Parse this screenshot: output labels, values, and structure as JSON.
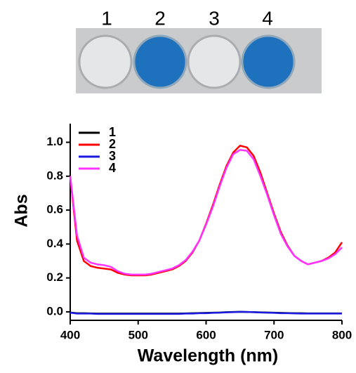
{
  "photo": {
    "labels": [
      "1",
      "2",
      "3",
      "4"
    ]
  },
  "chart_data": {
    "type": "line",
    "xlabel": "Wavelength (nm)",
    "ylabel": "Abs",
    "x": [
      400,
      410,
      420,
      430,
      440,
      450,
      460,
      470,
      480,
      490,
      500,
      510,
      520,
      530,
      540,
      550,
      560,
      570,
      580,
      590,
      600,
      610,
      620,
      630,
      640,
      650,
      660,
      670,
      680,
      690,
      700,
      710,
      720,
      730,
      740,
      750,
      760,
      770,
      780,
      790,
      800
    ],
    "series": [
      {
        "name": "1",
        "color": "#000000",
        "values": [
          -0.004,
          -0.008,
          -0.008,
          -0.009,
          -0.01,
          -0.01,
          -0.01,
          -0.01,
          -0.01,
          -0.01,
          -0.01,
          -0.01,
          -0.01,
          -0.01,
          -0.01,
          -0.01,
          -0.01,
          -0.009,
          -0.008,
          -0.007,
          -0.006,
          -0.005,
          -0.004,
          -0.002,
          -0.001,
          0,
          -0.001,
          -0.002,
          -0.003,
          -0.004,
          -0.005,
          -0.006,
          -0.007,
          -0.008,
          -0.008,
          -0.009,
          -0.009,
          -0.009,
          -0.009,
          -0.009,
          -0.009
        ]
      },
      {
        "name": "2",
        "color": "#ff0000",
        "values": [
          0.8,
          0.42,
          0.3,
          0.27,
          0.26,
          0.255,
          0.25,
          0.23,
          0.22,
          0.215,
          0.215,
          0.215,
          0.22,
          0.23,
          0.24,
          0.25,
          0.27,
          0.3,
          0.35,
          0.42,
          0.52,
          0.63,
          0.75,
          0.86,
          0.94,
          0.98,
          0.97,
          0.92,
          0.82,
          0.7,
          0.58,
          0.47,
          0.39,
          0.33,
          0.3,
          0.28,
          0.29,
          0.3,
          0.32,
          0.35,
          0.41
        ]
      },
      {
        "name": "3",
        "color": "#1a1ae0",
        "values": [
          -0.005,
          -0.01,
          -0.01,
          -0.01,
          -0.012,
          -0.012,
          -0.012,
          -0.012,
          -0.012,
          -0.012,
          -0.012,
          -0.012,
          -0.012,
          -0.012,
          -0.012,
          -0.012,
          -0.012,
          -0.01,
          -0.01,
          -0.008,
          -0.008,
          -0.006,
          -0.005,
          -0.003,
          -0.002,
          0,
          -0.001,
          -0.002,
          -0.004,
          -0.005,
          -0.006,
          -0.008,
          -0.008,
          -0.009,
          -0.01,
          -0.01,
          -0.01,
          -0.01,
          -0.01,
          -0.01,
          -0.01
        ]
      },
      {
        "name": "4",
        "color": "#ff33ff",
        "values": [
          0.8,
          0.45,
          0.32,
          0.29,
          0.28,
          0.275,
          0.265,
          0.24,
          0.225,
          0.22,
          0.22,
          0.22,
          0.225,
          0.235,
          0.245,
          0.255,
          0.275,
          0.305,
          0.355,
          0.42,
          0.515,
          0.62,
          0.74,
          0.85,
          0.93,
          0.955,
          0.95,
          0.9,
          0.8,
          0.69,
          0.57,
          0.46,
          0.385,
          0.33,
          0.3,
          0.28,
          0.29,
          0.3,
          0.315,
          0.34,
          0.38
        ]
      }
    ],
    "xlim": [
      400,
      800
    ],
    "xticks": [
      400,
      500,
      600,
      700,
      800
    ],
    "ylim": [
      -0.05,
      1.11
    ],
    "yticks": [
      {
        "value": 0,
        "label": "0.0"
      },
      0.2,
      0.4,
      0.6,
      0.8,
      {
        "value": 1,
        "label": "1.0"
      }
    ],
    "legend": "upper left"
  }
}
